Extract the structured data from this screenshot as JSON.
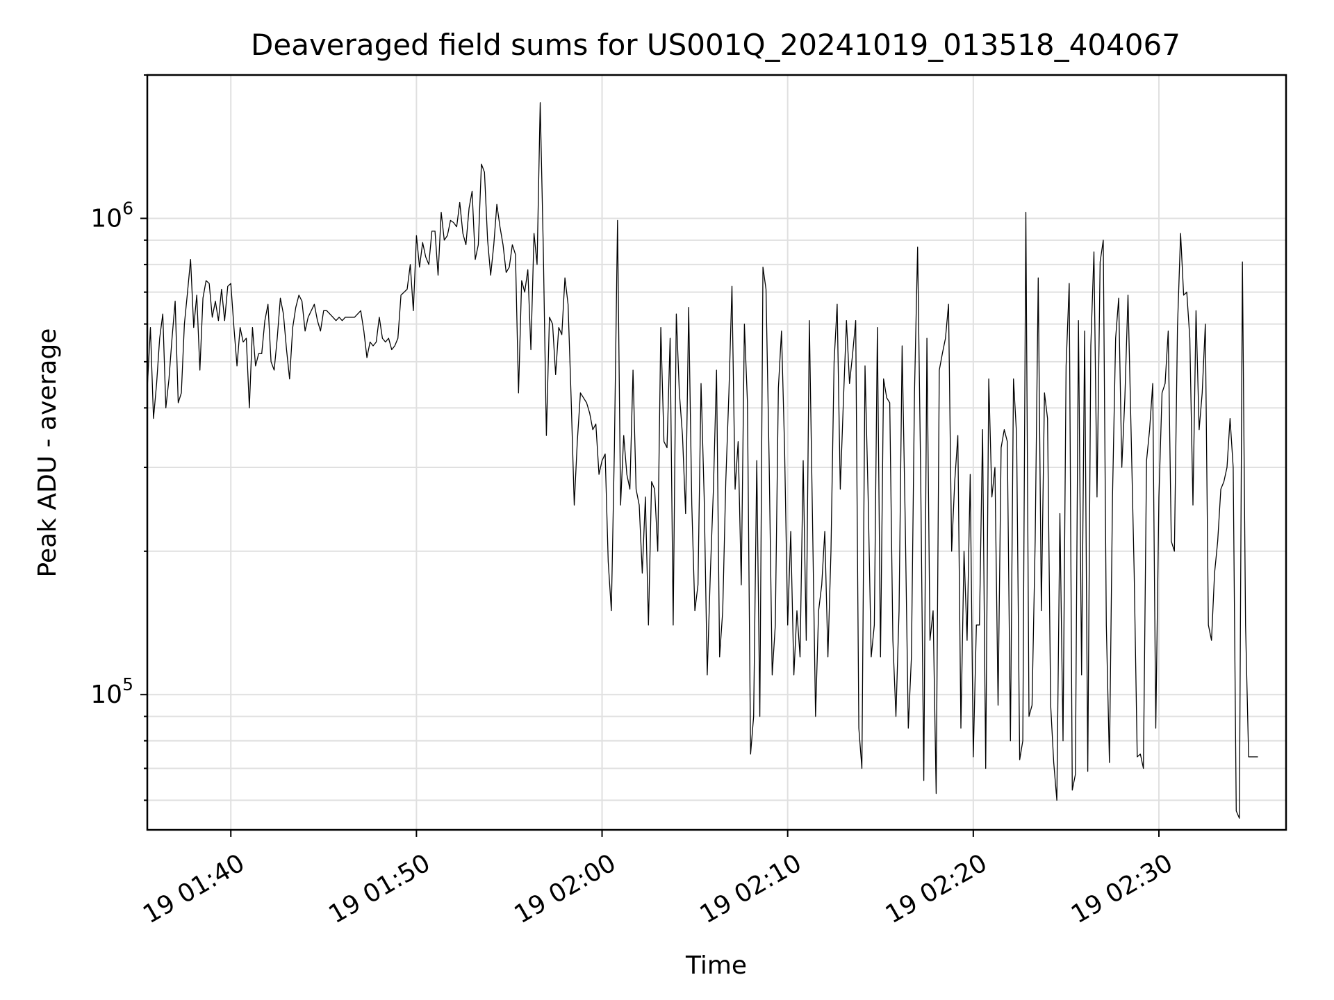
{
  "chart_data": {
    "type": "line",
    "title": "Deaveraged field sums for US001Q_20241019_013518_404067",
    "xlabel": "Time",
    "ylabel": "Peak ADU - average",
    "yscale": "log",
    "grid": true,
    "x_range": [
      "2024-10-19 01:35:30",
      "2024-10-19 02:36:51"
    ],
    "ylim": [
      52000,
      2000000
    ],
    "x_ticks": [
      {
        "label": "19 01:40",
        "time": "2024-10-19 01:40:00"
      },
      {
        "label": "19 01:50",
        "time": "2024-10-19 01:50:00"
      },
      {
        "label": "19 02:00",
        "time": "2024-10-19 02:00:00"
      },
      {
        "label": "19 02:10",
        "time": "2024-10-19 02:10:00"
      },
      {
        "label": "19 02:20",
        "time": "2024-10-19 02:20:00"
      },
      {
        "label": "19 02:30",
        "time": "2024-10-19 02:30:00"
      }
    ],
    "y_ticks": [
      {
        "value": 100000,
        "base": "10",
        "exp": "5"
      },
      {
        "value": 1000000,
        "base": "10",
        "exp": "6"
      }
    ],
    "series": [
      {
        "start_time": "2024-10-19 01:35:30",
        "interval_seconds": 10,
        "values": [
          440000,
          590000,
          380000,
          450000,
          560000,
          630000,
          400000,
          460000,
          560000,
          670000,
          410000,
          430000,
          600000,
          700000,
          820000,
          590000,
          690000,
          480000,
          680000,
          740000,
          730000,
          620000,
          670000,
          610000,
          710000,
          610000,
          720000,
          730000,
          590000,
          490000,
          590000,
          550000,
          560000,
          400000,
          590000,
          490000,
          520000,
          520000,
          610000,
          660000,
          500000,
          480000,
          560000,
          680000,
          630000,
          530000,
          460000,
          590000,
          650000,
          690000,
          670000,
          580000,
          620000,
          640000,
          660000,
          610000,
          580000,
          640000,
          640000,
          630000,
          620000,
          610000,
          620000,
          610000,
          620000,
          620000,
          620000,
          620000,
          630000,
          640000,
          580000,
          510000,
          550000,
          540000,
          550000,
          620000,
          560000,
          550000,
          560000,
          530000,
          540000,
          560000,
          690000,
          700000,
          710000,
          800000,
          640000,
          920000,
          790000,
          890000,
          830000,
          800000,
          940000,
          940000,
          760000,
          1030000,
          900000,
          920000,
          990000,
          980000,
          960000,
          1080000,
          930000,
          880000,
          1050000,
          1140000,
          820000,
          880000,
          1300000,
          1250000,
          900000,
          760000,
          880000,
          1070000,
          960000,
          880000,
          770000,
          790000,
          880000,
          840000,
          430000,
          740000,
          700000,
          780000,
          530000,
          930000,
          800000,
          1750000,
          870000,
          350000,
          620000,
          600000,
          470000,
          590000,
          570000,
          750000,
          660000,
          420000,
          250000,
          340000,
          430000,
          420000,
          410000,
          390000,
          360000,
          370000,
          290000,
          310000,
          320000,
          190000,
          150000,
          330000,
          990000,
          250000,
          350000,
          290000,
          270000,
          480000,
          270000,
          250000,
          180000,
          260000,
          140000,
          280000,
          270000,
          200000,
          590000,
          340000,
          330000,
          560000,
          140000,
          630000,
          430000,
          350000,
          240000,
          650000,
          250000,
          150000,
          170000,
          450000,
          260000,
          110000,
          180000,
          270000,
          480000,
          120000,
          150000,
          280000,
          430000,
          720000,
          270000,
          340000,
          170000,
          600000,
          410000,
          75000,
          90000,
          310000,
          90000,
          790000,
          710000,
          310000,
          110000,
          140000,
          440000,
          580000,
          330000,
          140000,
          220000,
          110000,
          150000,
          120000,
          310000,
          130000,
          610000,
          240000,
          90000,
          150000,
          170000,
          220000,
          120000,
          200000,
          500000,
          660000,
          270000,
          410000,
          610000,
          450000,
          520000,
          610000,
          85000,
          70000,
          490000,
          260000,
          120000,
          140000,
          590000,
          120000,
          460000,
          420000,
          410000,
          130000,
          90000,
          150000,
          540000,
          230000,
          85000,
          120000,
          430000,
          870000,
          290000,
          66000,
          560000,
          130000,
          150000,
          62000,
          480000,
          520000,
          560000,
          660000,
          200000,
          280000,
          350000,
          85000,
          200000,
          130000,
          290000,
          74000,
          140000,
          140000,
          360000,
          70000,
          460000,
          260000,
          300000,
          95000,
          330000,
          360000,
          340000,
          80000,
          460000,
          350000,
          73000,
          80000,
          1030000,
          90000,
          95000,
          210000,
          750000,
          150000,
          430000,
          380000,
          95000,
          72000,
          60000,
          240000,
          80000,
          490000,
          730000,
          63000,
          68000,
          610000,
          110000,
          580000,
          69000,
          540000,
          850000,
          260000,
          810000,
          900000,
          140000,
          72000,
          260000,
          560000,
          680000,
          300000,
          420000,
          690000,
          360000,
          180000,
          74000,
          75000,
          70000,
          310000,
          360000,
          450000,
          85000,
          260000,
          430000,
          450000,
          580000,
          210000,
          200000,
          590000,
          930000,
          690000,
          700000,
          560000,
          250000,
          640000,
          360000,
          430000,
          600000,
          140000,
          130000,
          180000,
          210000,
          270000,
          280000,
          300000,
          380000,
          300000,
          57000,
          55000,
          810000,
          140000,
          74000,
          74000,
          74000,
          74000
        ]
      }
    ]
  }
}
